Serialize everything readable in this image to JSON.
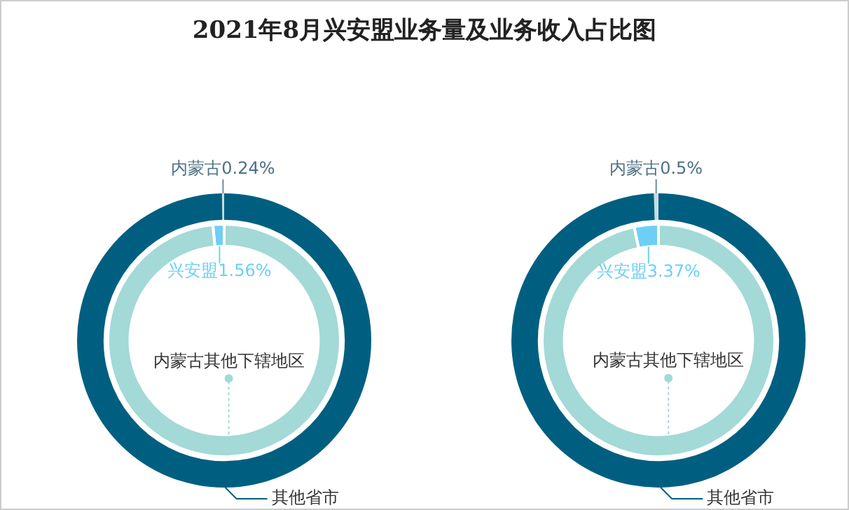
{
  "chart_data": [
    {
      "type": "donut",
      "title": "2021年8月兴安盟业务量及业务收入占比图",
      "legend": false,
      "categories": [
        "内蒙古",
        "其他省市"
      ],
      "values": [
        0.24,
        99.76
      ],
      "colors": [
        "#c9dde3",
        "#005f80"
      ],
      "value_labels": [
        "0.24%",
        null
      ]
    },
    {
      "type": "donut",
      "legend": false,
      "categories": [
        "兴安盟",
        "内蒙古其他下辖地区"
      ],
      "values": [
        1.56,
        98.44
      ],
      "colors": [
        "#6ecff6",
        "#a3d9d6"
      ],
      "value_labels": [
        "1.56%",
        null
      ]
    },
    {
      "type": "donut",
      "legend": false,
      "categories": [
        "内蒙古",
        "其他省市"
      ],
      "values": [
        0.5,
        99.5
      ],
      "colors": [
        "#c9dde3",
        "#005f80"
      ],
      "value_labels": [
        "0.5%",
        null
      ]
    },
    {
      "type": "donut",
      "legend": false,
      "categories": [
        "兴安盟",
        "内蒙古其他下辖地区"
      ],
      "values": [
        3.37,
        96.63
      ],
      "colors": [
        "#6ecff6",
        "#a3d9d6"
      ],
      "value_labels": [
        "3.37%",
        null
      ]
    }
  ]
}
